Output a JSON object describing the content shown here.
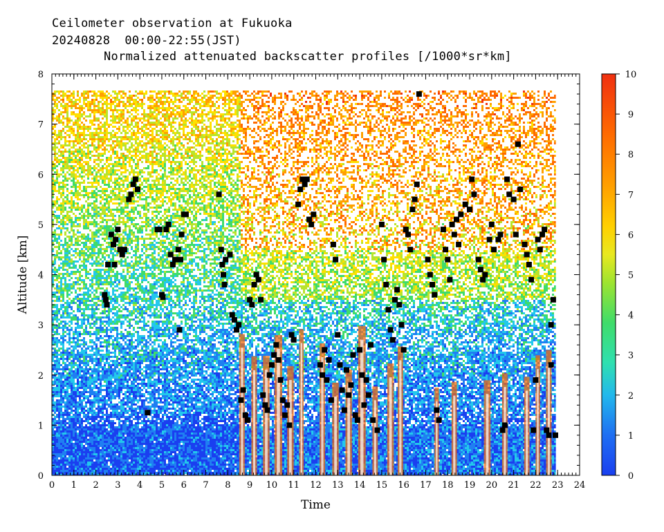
{
  "header": {
    "line1": "Ceilometer observation at Fukuoka",
    "line2": "20240828  00:00-22:55(JST)",
    "line3": "Normalized attenuated backscatter profiles [/1000*sr*km]"
  },
  "chart_data": {
    "type": "heatmap",
    "xlabel": "Time",
    "ylabel": "Altitude [km]",
    "xlim": [
      0,
      24
    ],
    "ylim": [
      0,
      8
    ],
    "data_top_altitude_km": 7.67,
    "data_end_time": 22.92,
    "x_ticks": [
      "0",
      "1",
      "2",
      "3",
      "4",
      "5",
      "6",
      "7",
      "8",
      "9",
      "10",
      "11",
      "12",
      "13",
      "14",
      "15",
      "16",
      "17",
      "18",
      "19",
      "20",
      "21",
      "22",
      "23",
      "24"
    ],
    "y_ticks": [
      "0",
      "1",
      "2",
      "3",
      "4",
      "5",
      "6",
      "7",
      "8"
    ],
    "colorbar": {
      "range": [
        0,
        10
      ],
      "ticks": [
        "0",
        "1",
        "2",
        "3",
        "4",
        "5",
        "6",
        "7",
        "8",
        "9",
        "10"
      ],
      "colors": [
        "#1a3ff0",
        "#1f7ff2",
        "#22c8ec",
        "#3fdc6a",
        "#b8e42c",
        "#ffe000",
        "#ffa000",
        "#ff6a00",
        "#f03010"
      ]
    },
    "background_description_levels": [
      {
        "alt_range": [
          0,
          1.2
        ],
        "typical_value": 0.8,
        "time_range": [
          0,
          8.5
        ]
      },
      {
        "alt_range": [
          1.2,
          3.0
        ],
        "typical_value": 1.8,
        "time_range": [
          0,
          8.5
        ]
      },
      {
        "alt_range": [
          3.0,
          5.0
        ],
        "typical_value": 3.0,
        "time_range": [
          0,
          8.5
        ]
      },
      {
        "alt_range": [
          5.0,
          7.67
        ],
        "typical_value": 5.5,
        "time_range": [
          0,
          8.5
        ]
      }
    ],
    "cloud_base_points": [
      [
        2.4,
        3.6
      ],
      [
        2.45,
        3.5
      ],
      [
        2.5,
        3.4
      ],
      [
        2.55,
        4.2
      ],
      [
        2.7,
        4.8
      ],
      [
        2.8,
        4.6
      ],
      [
        2.9,
        4.7
      ],
      [
        3.0,
        4.9
      ],
      [
        3.1,
        4.5
      ],
      [
        3.2,
        4.4
      ],
      [
        3.3,
        4.5
      ],
      [
        2.85,
        4.2
      ],
      [
        3.5,
        5.5
      ],
      [
        3.6,
        5.6
      ],
      [
        3.7,
        5.8
      ],
      [
        3.8,
        5.9
      ],
      [
        3.9,
        5.7
      ],
      [
        4.35,
        1.25
      ],
      [
        4.8,
        4.9
      ],
      [
        4.9,
        4.9
      ],
      [
        5.0,
        3.6
      ],
      [
        5.05,
        3.55
      ],
      [
        5.2,
        4.9
      ],
      [
        5.3,
        5.0
      ],
      [
        5.4,
        4.4
      ],
      [
        5.5,
        4.2
      ],
      [
        5.6,
        4.3
      ],
      [
        5.75,
        4.5
      ],
      [
        5.85,
        4.3
      ],
      [
        5.9,
        4.8
      ],
      [
        6.0,
        5.2
      ],
      [
        6.1,
        5.2
      ],
      [
        5.8,
        2.9
      ],
      [
        7.6,
        5.6
      ],
      [
        7.7,
        4.5
      ],
      [
        7.75,
        4.2
      ],
      [
        7.8,
        4.0
      ],
      [
        7.85,
        3.8
      ],
      [
        7.9,
        4.3
      ],
      [
        8.1,
        4.4
      ],
      [
        8.2,
        3.2
      ],
      [
        8.3,
        3.1
      ],
      [
        8.4,
        2.9
      ],
      [
        8.5,
        3.0
      ],
      [
        8.6,
        1.5
      ],
      [
        8.7,
        1.7
      ],
      [
        8.8,
        1.2
      ],
      [
        8.9,
        1.1
      ],
      [
        9.0,
        3.5
      ],
      [
        9.1,
        3.4
      ],
      [
        9.2,
        3.8
      ],
      [
        9.3,
        4.0
      ],
      [
        9.4,
        3.9
      ],
      [
        9.5,
        3.5
      ],
      [
        9.6,
        1.6
      ],
      [
        9.7,
        1.4
      ],
      [
        9.8,
        1.3
      ],
      [
        9.9,
        2.0
      ],
      [
        10.0,
        2.2
      ],
      [
        10.1,
        2.4
      ],
      [
        10.2,
        2.6
      ],
      [
        10.3,
        2.3
      ],
      [
        10.4,
        1.9
      ],
      [
        10.5,
        1.5
      ],
      [
        10.6,
        1.2
      ],
      [
        10.7,
        1.4
      ],
      [
        10.8,
        1.0
      ],
      [
        10.9,
        2.8
      ],
      [
        11.0,
        2.7
      ],
      [
        11.2,
        5.4
      ],
      [
        11.3,
        5.7
      ],
      [
        11.4,
        5.9
      ],
      [
        11.5,
        5.8
      ],
      [
        11.6,
        5.9
      ],
      [
        11.7,
        5.1
      ],
      [
        11.8,
        5.0
      ],
      [
        11.9,
        5.2
      ],
      [
        12.2,
        2.2
      ],
      [
        12.3,
        2.0
      ],
      [
        12.4,
        2.5
      ],
      [
        12.5,
        1.9
      ],
      [
        12.6,
        2.3
      ],
      [
        12.7,
        1.5
      ],
      [
        12.8,
        4.6
      ],
      [
        12.9,
        4.3
      ],
      [
        13.0,
        2.8
      ],
      [
        13.1,
        2.2
      ],
      [
        13.2,
        1.7
      ],
      [
        13.3,
        1.3
      ],
      [
        13.4,
        2.1
      ],
      [
        13.5,
        1.6
      ],
      [
        13.6,
        1.8
      ],
      [
        13.7,
        2.4
      ],
      [
        13.8,
        1.2
      ],
      [
        13.9,
        1.1
      ],
      [
        14.0,
        2.5
      ],
      [
        14.1,
        2.0
      ],
      [
        14.2,
        1.4
      ],
      [
        14.3,
        1.9
      ],
      [
        14.4,
        1.6
      ],
      [
        14.5,
        2.6
      ],
      [
        14.6,
        1.1
      ],
      [
        14.8,
        0.9
      ],
      [
        15.0,
        5.0
      ],
      [
        15.1,
        4.3
      ],
      [
        15.2,
        3.8
      ],
      [
        15.3,
        3.3
      ],
      [
        15.4,
        2.9
      ],
      [
        15.5,
        2.7
      ],
      [
        15.6,
        3.5
      ],
      [
        15.7,
        3.7
      ],
      [
        15.8,
        3.4
      ],
      [
        15.9,
        3.0
      ],
      [
        16.0,
        2.5
      ],
      [
        16.1,
        4.9
      ],
      [
        16.2,
        4.8
      ],
      [
        16.3,
        4.5
      ],
      [
        16.4,
        5.3
      ],
      [
        16.5,
        5.5
      ],
      [
        16.6,
        5.8
      ],
      [
        16.7,
        7.6
      ],
      [
        17.1,
        4.3
      ],
      [
        17.2,
        4.0
      ],
      [
        17.3,
        3.8
      ],
      [
        17.4,
        3.6
      ],
      [
        17.5,
        1.3
      ],
      [
        17.6,
        1.1
      ],
      [
        17.8,
        4.9
      ],
      [
        17.9,
        4.5
      ],
      [
        18.0,
        4.3
      ],
      [
        18.1,
        3.9
      ],
      [
        18.2,
        5.0
      ],
      [
        18.3,
        4.8
      ],
      [
        18.4,
        5.1
      ],
      [
        18.5,
        4.6
      ],
      [
        18.6,
        5.2
      ],
      [
        18.8,
        5.4
      ],
      [
        19.0,
        5.3
      ],
      [
        19.1,
        5.9
      ],
      [
        19.2,
        5.6
      ],
      [
        19.4,
        4.3
      ],
      [
        19.5,
        4.1
      ],
      [
        19.6,
        3.9
      ],
      [
        19.7,
        4.0
      ],
      [
        19.9,
        4.7
      ],
      [
        20.0,
        5.0
      ],
      [
        20.1,
        4.5
      ],
      [
        20.3,
        4.7
      ],
      [
        20.4,
        4.8
      ],
      [
        20.5,
        0.9
      ],
      [
        20.6,
        1.0
      ],
      [
        20.7,
        5.9
      ],
      [
        20.8,
        5.6
      ],
      [
        21.0,
        5.5
      ],
      [
        21.1,
        4.8
      ],
      [
        21.2,
        6.6
      ],
      [
        21.3,
        5.7
      ],
      [
        21.5,
        4.6
      ],
      [
        21.6,
        4.4
      ],
      [
        21.7,
        4.2
      ],
      [
        21.8,
        3.9
      ],
      [
        21.9,
        0.9
      ],
      [
        22.0,
        1.9
      ],
      [
        22.1,
        4.7
      ],
      [
        22.2,
        4.5
      ],
      [
        22.3,
        4.8
      ],
      [
        22.4,
        4.9
      ],
      [
        22.5,
        0.9
      ],
      [
        22.6,
        0.8
      ],
      [
        22.7,
        2.2
      ],
      [
        22.8,
        3.5
      ],
      [
        22.9,
        0.8
      ],
      [
        22.7,
        3.0
      ]
    ],
    "rain_columns": [
      {
        "t": 8.65,
        "w": 0.25
      },
      {
        "t": 9.2,
        "w": 0.25
      },
      {
        "t": 9.75,
        "w": 0.3
      },
      {
        "t": 10.3,
        "w": 0.35
      },
      {
        "t": 10.85,
        "w": 0.3
      },
      {
        "t": 11.35,
        "w": 0.2
      },
      {
        "t": 12.3,
        "w": 0.25
      },
      {
        "t": 12.9,
        "w": 0.3
      },
      {
        "t": 13.5,
        "w": 0.3
      },
      {
        "t": 14.1,
        "w": 0.35
      },
      {
        "t": 14.7,
        "w": 0.25
      },
      {
        "t": 15.4,
        "w": 0.3
      },
      {
        "t": 15.85,
        "w": 0.25
      },
      {
        "t": 17.5,
        "w": 0.2
      },
      {
        "t": 18.3,
        "w": 0.25
      },
      {
        "t": 19.8,
        "w": 0.3
      },
      {
        "t": 20.6,
        "w": 0.25
      },
      {
        "t": 21.6,
        "w": 0.25
      },
      {
        "t": 22.1,
        "w": 0.2
      },
      {
        "t": 22.6,
        "w": 0.25
      }
    ]
  }
}
